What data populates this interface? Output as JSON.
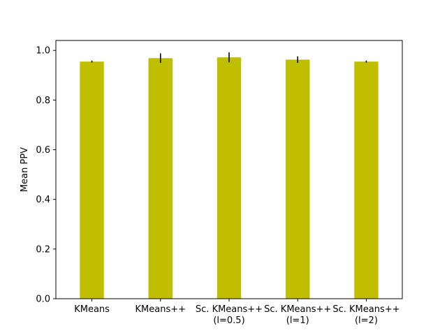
{
  "chart_data": {
    "type": "bar",
    "categories": [
      [
        "KMeans"
      ],
      [
        "KMeans++"
      ],
      [
        "Sc. KMeans++",
        "(l=0.5)"
      ],
      [
        "Sc. KMeans++",
        "(l=1)"
      ],
      [
        "Sc. KMeans++",
        "(l=2)"
      ]
    ],
    "values": [
      0.955,
      0.969,
      0.972,
      0.963,
      0.955
    ],
    "errors": [
      0.004,
      0.019,
      0.02,
      0.013,
      0.004
    ],
    "title": "",
    "xlabel": "",
    "ylabel": "Mean PPV",
    "ylim": [
      0.0,
      1.04
    ],
    "yticks": [
      "0.0",
      "0.2",
      "0.4",
      "0.6",
      "0.8",
      "1.0"
    ],
    "grid": false,
    "bar_color": "#bfbf00",
    "error_color": "#000000"
  }
}
